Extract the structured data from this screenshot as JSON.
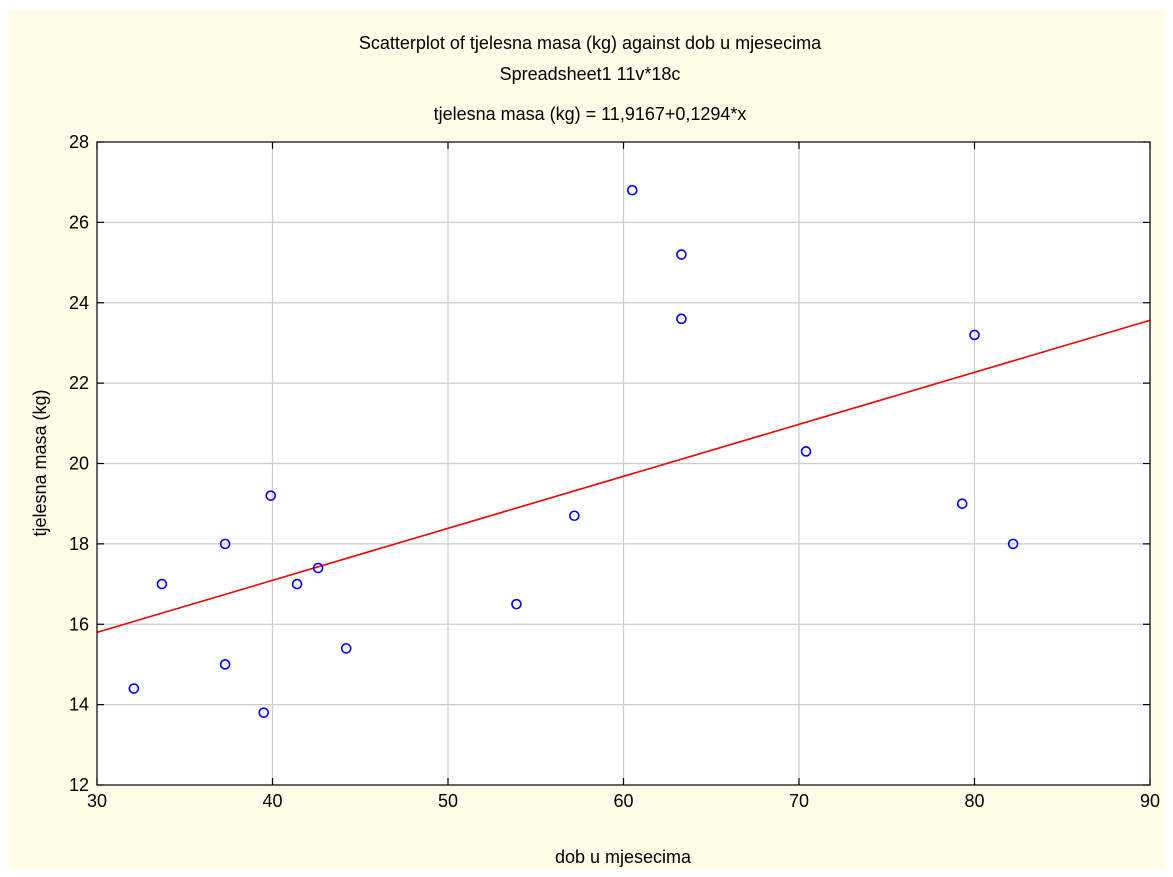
{
  "chart_data": {
    "type": "scatter",
    "title": "Scatterplot of tjelesna masa (kg) against dob u mjesecima",
    "subtitle": "Spreadsheet1 11v*18c",
    "equation": "tjelesna masa (kg) = 11,9167+0,1294*x",
    "xlabel": "dob u mjesecima",
    "ylabel": "tjelesna masa (kg)",
    "xlim": [
      30,
      90
    ],
    "ylim": [
      12,
      28
    ],
    "x_ticks": [
      30,
      40,
      50,
      60,
      70,
      80,
      90
    ],
    "y_ticks": [
      12,
      14,
      16,
      18,
      20,
      22,
      24,
      26,
      28
    ],
    "grid": true,
    "regression": {
      "intercept": 11.9167,
      "slope": 0.1294
    },
    "points": [
      {
        "x": 32.1,
        "y": 14.4
      },
      {
        "x": 33.7,
        "y": 17.0
      },
      {
        "x": 37.3,
        "y": 18.0
      },
      {
        "x": 37.3,
        "y": 15.0
      },
      {
        "x": 39.5,
        "y": 13.8
      },
      {
        "x": 39.9,
        "y": 19.2
      },
      {
        "x": 41.4,
        "y": 17.0
      },
      {
        "x": 42.6,
        "y": 17.4
      },
      {
        "x": 44.2,
        "y": 15.4
      },
      {
        "x": 53.9,
        "y": 16.5
      },
      {
        "x": 57.2,
        "y": 18.7
      },
      {
        "x": 60.5,
        "y": 26.8
      },
      {
        "x": 63.3,
        "y": 25.2
      },
      {
        "x": 63.3,
        "y": 23.6
      },
      {
        "x": 70.4,
        "y": 20.3
      },
      {
        "x": 79.3,
        "y": 19.0
      },
      {
        "x": 80.0,
        "y": 23.2
      },
      {
        "x": 82.2,
        "y": 18.0
      }
    ],
    "colors": {
      "point": "#0000ff",
      "line": "#ee0000",
      "grid": "#cccccc",
      "frame_background": "#fffbe6",
      "plot_background": "#ffffff"
    }
  }
}
